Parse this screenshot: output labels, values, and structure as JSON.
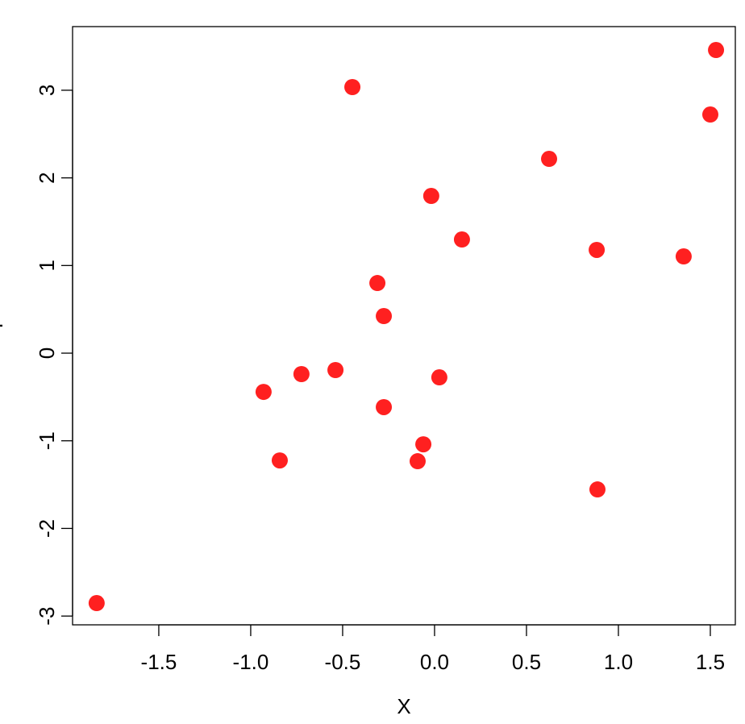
{
  "chart_data": {
    "type": "scatter",
    "x_label": "X",
    "y_label": "Y",
    "color": "#ff2020",
    "x": [
      -1.838,
      -0.93,
      -0.842,
      -0.724,
      -0.539,
      -0.447,
      -0.311,
      -0.276,
      -0.276,
      -0.092,
      -0.061,
      -0.018,
      0.026,
      0.149,
      0.623,
      0.882,
      0.886,
      1.355,
      1.5,
      1.531
    ],
    "values": [
      -2.852,
      -0.442,
      -1.224,
      -0.239,
      -0.193,
      3.036,
      0.8,
      0.423,
      -0.616,
      -1.233,
      -1.04,
      1.794,
      -0.276,
      1.297,
      2.217,
      1.178,
      -1.555,
      1.104,
      2.723,
      3.459
    ],
    "xlim": [
      -1.969,
      1.636
    ],
    "ylim": [
      -3.1,
      3.726
    ],
    "xticks": [
      -1.5,
      {
        "value": -1,
        "label": "-1.0"
      },
      -0.5,
      {
        "value": 0,
        "label": "0.0"
      },
      0.5,
      {
        "value": 1,
        "label": "1.0"
      },
      1.5
    ],
    "yticks": [
      -3,
      -2,
      -1,
      0,
      1,
      2,
      3
    ]
  }
}
